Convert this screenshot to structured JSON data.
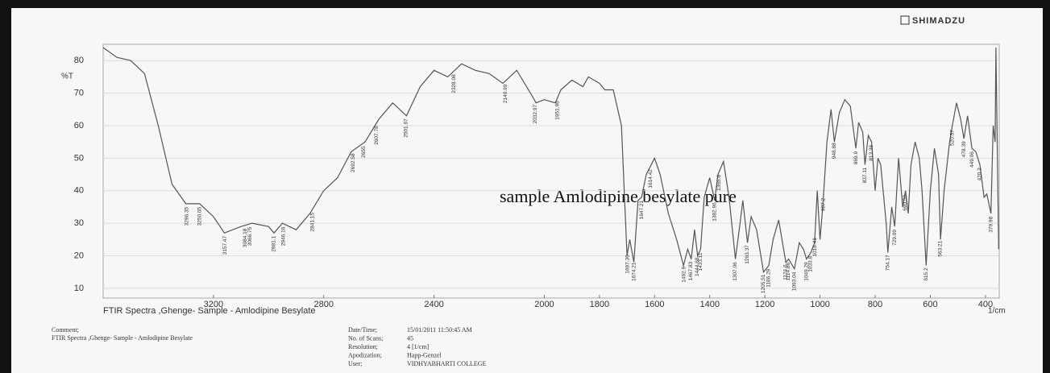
{
  "chart_data": {
    "type": "line",
    "brand": "SHIMADZU",
    "annotation": "sample Amlodipine besylate pure",
    "title": "FTIR Spectra ,Ghenge- Sample - Amlodipine Besylate",
    "ylabel": "%T",
    "xlabel": "1/cm",
    "color": "#555555",
    "grid": true,
    "xlim": [
      3600,
      350
    ],
    "ylim": [
      7,
      85
    ],
    "xticks": [
      3200,
      2800,
      2400,
      2000,
      1800,
      1600,
      1400,
      1200,
      1000,
      800,
      600,
      400
    ],
    "yticks": [
      10,
      20,
      30,
      40,
      50,
      60,
      70,
      80
    ],
    "x": [
      3600,
      3550,
      3500,
      3450,
      3400,
      3350,
      3300,
      3250,
      3200,
      3160,
      3100,
      3060,
      3000,
      2980,
      2950,
      2900,
      2850,
      2800,
      2750,
      2700,
      2650,
      2600,
      2550,
      2500,
      2450,
      2400,
      2350,
      2300,
      2250,
      2200,
      2150,
      2100,
      2050,
      2030,
      2000,
      1960,
      1940,
      1900,
      1860,
      1840,
      1800,
      1780,
      1750,
      1720,
      1700,
      1690,
      1675,
      1660,
      1647,
      1630,
      1600,
      1580,
      1550,
      1520,
      1495,
      1480,
      1467,
      1455,
      1444,
      1433,
      1420,
      1400,
      1382,
      1370,
      1350,
      1330,
      1307,
      1290,
      1280,
      1263,
      1250,
      1230,
      1205,
      1186,
      1170,
      1150,
      1124,
      1114,
      1093,
      1075,
      1060,
      1049,
      1033,
      1020,
      1010,
      1000,
      990,
      975,
      960,
      948,
      930,
      910,
      890,
      870,
      860,
      845,
      837,
      825,
      813,
      800,
      790,
      780,
      760,
      754,
      740,
      729,
      715,
      700,
      690,
      680,
      670,
      655,
      640,
      630,
      615,
      600,
      585,
      570,
      563,
      550,
      530,
      520,
      505,
      490,
      478,
      465,
      449,
      435,
      420,
      405,
      395,
      380,
      372,
      365,
      362,
      352
    ],
    "values": [
      84,
      81,
      80,
      76,
      60,
      42,
      36,
      36,
      32,
      27,
      29,
      30,
      29,
      27,
      30,
      28,
      33,
      40,
      44,
      52,
      55,
      62,
      67,
      63,
      72,
      77,
      75,
      79,
      77,
      76,
      73,
      77,
      70,
      67,
      68,
      67,
      71,
      74,
      72,
      75,
      73,
      71,
      71,
      60,
      20,
      25,
      18,
      37,
      38,
      45,
      50,
      45,
      33,
      25,
      17,
      22,
      19,
      28,
      20,
      22,
      38,
      44,
      37,
      45,
      49,
      38,
      19,
      30,
      37,
      24,
      32,
      28,
      15,
      17,
      25,
      31,
      18,
      19,
      16,
      24,
      22,
      19,
      21,
      24,
      40,
      25,
      35,
      55,
      65,
      55,
      64,
      68,
      66,
      53,
      61,
      58,
      48,
      57,
      55,
      40,
      50,
      48,
      30,
      21,
      35,
      29,
      50,
      35,
      40,
      33,
      48,
      55,
      50,
      40,
      17,
      40,
      53,
      45,
      25,
      40,
      55,
      60,
      67,
      62,
      56,
      63,
      53,
      52,
      48,
      38,
      39,
      33,
      60,
      55,
      84,
      22
    ],
    "peaks": [
      3296.35,
      3250.05,
      3157.47,
      3084.18,
      3066.75,
      2981.1,
      2946.16,
      2841.15,
      2692.58,
      2655.0,
      2607.78,
      2501.67,
      2328.08,
      2140.99,
      2032.97,
      1951.96,
      1697.36,
      1674.21,
      1647.21,
      1614.42,
      1492.9,
      1467.83,
      1444.68,
      1433.11,
      1382.96,
      1365.6,
      1307.06,
      1263.37,
      1205.51,
      1186.29,
      1124.6,
      1114.86,
      1093.04,
      1049.29,
      1033.8,
      1018.41,
      987.2,
      948.88,
      869.9,
      837.11,
      813.36,
      754.17,
      729.09,
      690.52,
      615.2,
      563.21,
      520.57,
      478.39,
      449.06,
      420.2,
      379.98
    ],
    "footer": {
      "comment_label": "Comment;",
      "comment": "FTIR Spectra ,Ghenge- Sample - Amlodipine Besylate",
      "fields": [
        {
          "label": "Date/Time;",
          "value": "15/01/2011 11:50:45 AM"
        },
        {
          "label": "No. of Scans;",
          "value": "45"
        },
        {
          "label": "Resolution;",
          "value": "4 [1/cm]"
        },
        {
          "label": "Apodization;",
          "value": "Happ-Genzel"
        },
        {
          "label": "User;",
          "value": "VIDHYABHARTI COLLEGE"
        }
      ]
    }
  }
}
